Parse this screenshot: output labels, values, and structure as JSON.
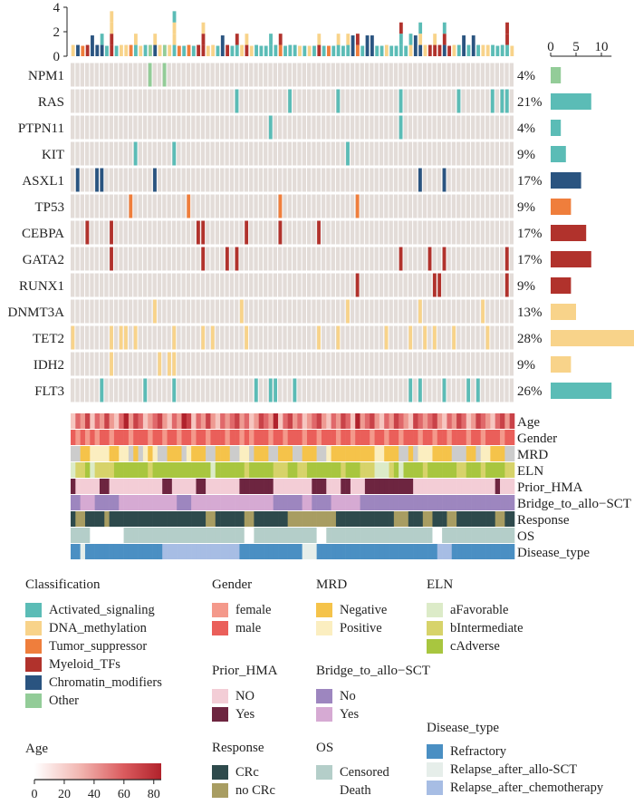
{
  "chart_data": {
    "type": "heatmap",
    "genes": [
      "NPM1",
      "RAS",
      "PTPN11",
      "KIT",
      "ASXL1",
      "TP53",
      "CEBPA",
      "GATA2",
      "RUNX1",
      "DNMT3A",
      "TET2",
      "IDH2",
      "FLT3"
    ],
    "gene_class": [
      5,
      0,
      0,
      0,
      4,
      2,
      3,
      3,
      3,
      1,
      1,
      1,
      0
    ],
    "percentages": [
      "4%",
      "21%",
      "4%",
      "9%",
      "17%",
      "9%",
      "17%",
      "17%",
      "9%",
      "13%",
      "28%",
      "9%",
      "26%"
    ],
    "bar_ticks": [
      "0",
      "5",
      "10"
    ],
    "bar_max": 12,
    "top_ticks": [
      "4",
      "2",
      "0"
    ],
    "top_max": 4,
    "mutations": [
      [
        16,
        19
      ],
      [
        34,
        45,
        55,
        68,
        80,
        87,
        89,
        90
      ],
      [
        41,
        68
      ],
      [
        13,
        21,
        57
      ],
      [
        1,
        5,
        6,
        17,
        72,
        77
      ],
      [
        12,
        24,
        43,
        59
      ],
      [
        3,
        8,
        26,
        27,
        36,
        43,
        51
      ],
      [
        8,
        27,
        32,
        34,
        68,
        74,
        77,
        90
      ],
      [
        59,
        75,
        76,
        90
      ],
      [
        17,
        35,
        57,
        72,
        85
      ],
      [
        0,
        8,
        10,
        11,
        13,
        21,
        27,
        29,
        36,
        51,
        55,
        65,
        70,
        73,
        75,
        79,
        86
      ],
      [
        8,
        18,
        20,
        21
      ],
      [
        6,
        15,
        21,
        38,
        41,
        42,
        46,
        70,
        72,
        77,
        82,
        84
      ]
    ],
    "column_types": [
      "1",
      "1",
      "3",
      "1",
      "5",
      "4",
      "3",
      "1",
      "4",
      "1",
      "1",
      "5",
      "5",
      "1",
      "2",
      "1",
      "5",
      "3",
      "1",
      "1",
      "1",
      "4",
      "3",
      "1",
      "2",
      "1",
      "1",
      "3",
      "2",
      "1",
      "1",
      "5",
      "1",
      "1",
      "3",
      "1",
      "1",
      "2",
      "1",
      "1",
      "1",
      "5",
      "4",
      "2",
      "1",
      "2",
      "2",
      "2",
      "1",
      "2",
      "1",
      "1",
      "1",
      "3",
      "1",
      "5",
      "1",
      "1",
      "5",
      "2",
      "1",
      "5",
      "5",
      "1",
      "1",
      "1",
      "1",
      "1",
      "1",
      "1",
      "1",
      "5",
      "1",
      "1",
      "1",
      "5",
      "3",
      "3",
      "4",
      "3",
      "1",
      "5",
      "1",
      "5",
      "1",
      "3",
      "4",
      "3",
      "1",
      "1",
      "1",
      "2"
    ],
    "annotations": [
      {
        "label": "Age",
        "palette": [
          "#fbe8e6",
          "#f6c6c0",
          "#ee9a92",
          "#e0686a",
          "#c94248",
          "#b0222c"
        ],
        "values": [
          1,
          3,
          2,
          4,
          1,
          3,
          2,
          4,
          2,
          1,
          3,
          5,
          2,
          4,
          3,
          1,
          2,
          3,
          4,
          2,
          1,
          3,
          2,
          5,
          4,
          1,
          3,
          2,
          4,
          2,
          1,
          3,
          2,
          3,
          4,
          2,
          3,
          1,
          2,
          4,
          3,
          2,
          5,
          1,
          3,
          4,
          2,
          3,
          1,
          2,
          3,
          4,
          2,
          1,
          3,
          2,
          4,
          3,
          1,
          5,
          2,
          3,
          4,
          2,
          1,
          3,
          2,
          4,
          3,
          2,
          1,
          4,
          3,
          2,
          3,
          4,
          2,
          1,
          3,
          2,
          4,
          3,
          1,
          2,
          4,
          3,
          2,
          1,
          3,
          4,
          2,
          4
        ]
      },
      {
        "label": "Gender",
        "palette": [
          "#f4998b",
          "#ea5f5a"
        ],
        "values": [
          1,
          0,
          1,
          0,
          1,
          0,
          1,
          1,
          0,
          1,
          1,
          1,
          0,
          1,
          1,
          1,
          0,
          1,
          1,
          0,
          1,
          1,
          0,
          1,
          1,
          0,
          1,
          1,
          0,
          1,
          1,
          1,
          0,
          1,
          1,
          0,
          1,
          0,
          1,
          1,
          1,
          0,
          1,
          1,
          0,
          1,
          1,
          1,
          0,
          1,
          1,
          0,
          1,
          1,
          1,
          0,
          1,
          1,
          0,
          1,
          1,
          1,
          0,
          1,
          1,
          0,
          1,
          1,
          0,
          1,
          1,
          1,
          0,
          1,
          1,
          0,
          1,
          1,
          0,
          1,
          1,
          1,
          0,
          1,
          1,
          0,
          1,
          1,
          1,
          0,
          1,
          1
        ]
      },
      {
        "label": "MRD",
        "palette": [
          "#f5c34a",
          "#fbeec0",
          "#cccccc"
        ],
        "values": [
          2,
          2,
          0,
          0,
          1,
          1,
          1,
          1,
          0,
          0,
          1,
          1,
          2,
          0,
          2,
          1,
          0,
          1,
          2,
          2,
          0,
          0,
          0,
          2,
          1,
          0,
          0,
          0,
          2,
          2,
          0,
          0,
          0,
          2,
          2,
          1,
          1,
          2,
          0,
          0,
          0,
          2,
          2,
          0,
          0,
          0,
          2,
          2,
          0,
          0,
          0,
          2,
          2,
          1,
          0,
          0,
          0,
          0,
          0,
          0,
          0,
          0,
          0,
          1,
          1,
          0,
          0,
          0,
          2,
          2,
          0,
          2,
          1,
          1,
          1,
          0,
          0,
          0,
          0,
          2,
          2,
          2,
          0,
          0,
          2,
          1,
          1,
          0,
          0,
          0,
          2,
          2
        ]
      },
      {
        "label": "ELN",
        "palette": [
          "#dcebc8",
          "#d7d36a",
          "#a8c63f"
        ],
        "values": [
          0,
          1,
          1,
          2,
          0,
          1,
          1,
          1,
          1,
          2,
          2,
          2,
          2,
          2,
          2,
          2,
          1,
          2,
          2,
          2,
          2,
          2,
          2,
          2,
          2,
          2,
          2,
          2,
          2,
          0,
          2,
          2,
          2,
          2,
          2,
          2,
          1,
          2,
          2,
          2,
          2,
          2,
          1,
          1,
          1,
          2,
          2,
          1,
          1,
          2,
          2,
          2,
          2,
          2,
          2,
          2,
          1,
          2,
          2,
          2,
          1,
          1,
          1,
          0,
          0,
          0,
          1,
          2,
          0,
          2,
          2,
          2,
          2,
          1,
          2,
          2,
          2,
          2,
          2,
          2,
          1,
          1,
          2,
          2,
          2,
          1,
          2,
          2,
          2,
          2,
          1,
          1
        ]
      },
      {
        "label": "Prior_HMA",
        "palette": [
          "#f3cdd6",
          "#6d2540"
        ],
        "values": [
          1,
          0,
          0,
          0,
          0,
          0,
          1,
          1,
          0,
          0,
          0,
          0,
          0,
          0,
          0,
          0,
          0,
          0,
          0,
          1,
          1,
          0,
          0,
          0,
          0,
          0,
          1,
          1,
          0,
          0,
          0,
          0,
          0,
          0,
          0,
          1,
          1,
          1,
          1,
          1,
          1,
          1,
          0,
          0,
          0,
          0,
          0,
          0,
          0,
          0,
          1,
          1,
          1,
          0,
          0,
          0,
          1,
          1,
          0,
          0,
          0,
          1,
          1,
          1,
          1,
          1,
          1,
          1,
          1,
          1,
          1,
          0,
          0,
          0,
          0,
          0,
          0,
          0,
          0,
          0,
          0,
          0,
          0,
          0,
          0,
          0,
          0,
          0,
          1,
          0,
          0,
          0
        ]
      },
      {
        "label": "Bridge_to_allo−SCT",
        "palette": [
          "#9d86bf",
          "#d6aad3"
        ],
        "values": [
          0,
          0,
          1,
          1,
          1,
          0,
          0,
          0,
          0,
          0,
          1,
          1,
          1,
          1,
          1,
          1,
          1,
          1,
          1,
          1,
          1,
          1,
          0,
          0,
          0,
          1,
          1,
          1,
          1,
          1,
          1,
          1,
          1,
          1,
          1,
          1,
          1,
          1,
          1,
          1,
          1,
          1,
          0,
          0,
          0,
          0,
          0,
          0,
          1,
          1,
          0,
          0,
          0,
          0,
          1,
          1,
          1,
          1,
          1,
          1,
          0,
          0,
          0,
          0,
          0,
          0,
          0,
          0,
          0,
          0,
          0,
          0,
          0,
          0,
          0,
          0,
          0,
          0,
          0,
          0,
          0,
          0,
          0,
          0,
          0,
          0,
          0,
          0,
          0,
          0,
          0,
          0
        ]
      },
      {
        "label": "Response",
        "palette": [
          "#2e4a4c",
          "#a89d62"
        ],
        "values": [
          0,
          1,
          1,
          0,
          0,
          0,
          0,
          1,
          0,
          0,
          0,
          0,
          0,
          0,
          0,
          0,
          0,
          0,
          0,
          0,
          0,
          0,
          0,
          0,
          0,
          0,
          0,
          0,
          1,
          1,
          0,
          0,
          0,
          0,
          0,
          0,
          1,
          1,
          0,
          0,
          0,
          0,
          0,
          0,
          0,
          1,
          1,
          1,
          1,
          1,
          1,
          1,
          1,
          1,
          1,
          0,
          0,
          0,
          0,
          0,
          0,
          0,
          0,
          0,
          0,
          0,
          0,
          1,
          1,
          1,
          0,
          0,
          0,
          1,
          1,
          0,
          0,
          0,
          1,
          1,
          0,
          0,
          0,
          0,
          0,
          0,
          0,
          0,
          1,
          1,
          0,
          0
        ]
      },
      {
        "label": "OS",
        "palette": [
          "#b4cec9",
          "#ffffff"
        ],
        "values": [
          0,
          0,
          0,
          0,
          1,
          1,
          1,
          1,
          1,
          1,
          1,
          0,
          0,
          0,
          0,
          0,
          0,
          0,
          0,
          0,
          0,
          0,
          0,
          0,
          0,
          0,
          0,
          0,
          0,
          0,
          0,
          0,
          0,
          0,
          0,
          0,
          1,
          1,
          0,
          0,
          0,
          0,
          0,
          0,
          0,
          0,
          0,
          0,
          0,
          0,
          0,
          1,
          1,
          0,
          0,
          0,
          0,
          0,
          0,
          0,
          0,
          0,
          0,
          0,
          0,
          0,
          0,
          0,
          0,
          0,
          0,
          0,
          0,
          0,
          0,
          1,
          1,
          0,
          0,
          0,
          0,
          0,
          0,
          0,
          0,
          0,
          0,
          0,
          0,
          0,
          0,
          0
        ]
      },
      {
        "label": "Disease_type",
        "palette": [
          "#4a8fc3",
          "#e6eeea",
          "#a7bde4"
        ],
        "values": [
          0,
          0,
          1,
          0,
          0,
          0,
          0,
          0,
          0,
          0,
          0,
          0,
          0,
          0,
          0,
          0,
          0,
          0,
          0,
          2,
          2,
          2,
          2,
          2,
          2,
          2,
          2,
          2,
          2,
          2,
          2,
          2,
          2,
          2,
          2,
          0,
          0,
          0,
          0,
          0,
          0,
          0,
          0,
          0,
          0,
          0,
          0,
          0,
          1,
          1,
          1,
          0,
          0,
          0,
          0,
          0,
          0,
          0,
          0,
          0,
          0,
          0,
          0,
          0,
          0,
          0,
          0,
          0,
          0,
          0,
          0,
          0,
          0,
          0,
          0,
          0,
          2,
          2,
          2,
          0,
          0,
          0,
          0,
          0,
          0,
          0,
          0,
          0,
          0,
          0,
          0,
          0
        ]
      }
    ],
    "age_legend": {
      "title": "Age",
      "ticks": [
        "0",
        "20",
        "40",
        "60",
        "80"
      ],
      "min": 0,
      "max": 85
    }
  },
  "colors": {
    "classification": [
      "#5bbcb6",
      "#f8d38a",
      "#ef7e3c",
      "#b1322c",
      "#2a5480",
      "#93cc98"
    ],
    "background": "#e3dcd8",
    "age_ramp": [
      "#ffffff",
      "#f2b8b3",
      "#db5c5f",
      "#b1222b"
    ]
  },
  "legend": {
    "classification": {
      "title": "Classification",
      "items": [
        "Activated_signaling",
        "DNA_methylation",
        "Tumor_suppressor",
        "Myeloid_TFs",
        "Chromatin_modifiers",
        "Other"
      ]
    },
    "gender": {
      "title": "Gender",
      "items": [
        "female",
        "male"
      ]
    },
    "mrd": {
      "title": "MRD",
      "items": [
        "Negative",
        "Positive"
      ]
    },
    "eln": {
      "title": "ELN",
      "items": [
        "aFavorable",
        "bIntermediate",
        "cAdverse"
      ]
    },
    "prior_hma": {
      "title": "Prior_HMA",
      "items": [
        "NO",
        "Yes"
      ]
    },
    "bridge": {
      "title": "Bridge_to_allo−SCT",
      "items": [
        "No",
        "Yes"
      ]
    },
    "response": {
      "title": "Response",
      "items": [
        "CRc",
        "no CRc"
      ]
    },
    "os": {
      "title": "OS",
      "items": [
        "Censored",
        "Death"
      ]
    },
    "disease_type": {
      "title": "Disease_type",
      "items": [
        "Refractory",
        "Relapse_after_allo-SCT",
        "Relapse_after_chemotherapy"
      ]
    }
  }
}
